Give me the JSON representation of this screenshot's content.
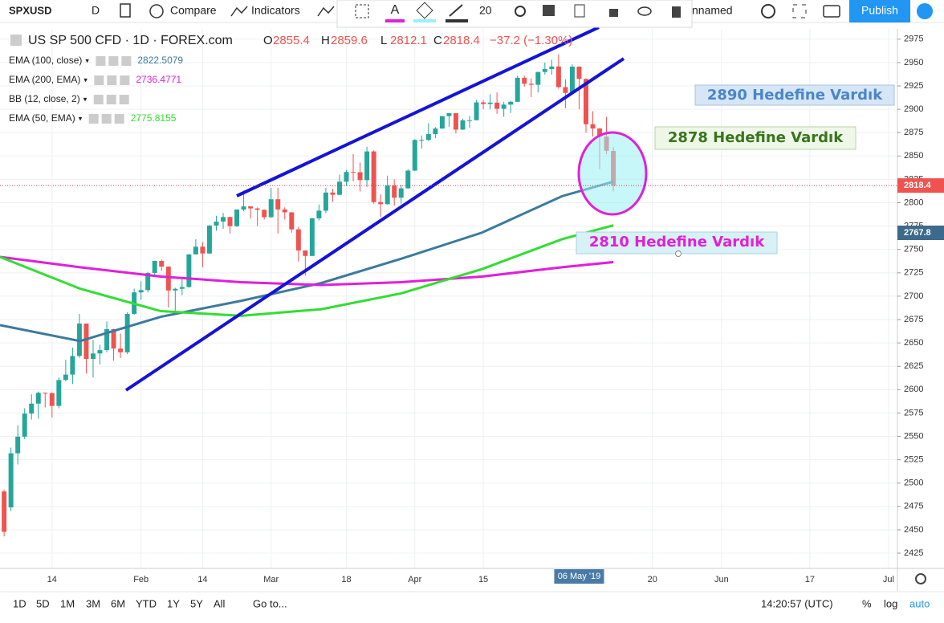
{
  "toolbar": {
    "symbol": "SPXUSD",
    "interval": "D",
    "compare": "Compare",
    "indicators": "Indicators",
    "font_size": 20,
    "layout_name": "nnamed",
    "publish": "Publish"
  },
  "bottom_bar": {
    "ranges": [
      "1D",
      "5D",
      "1M",
      "3M",
      "6M",
      "YTD",
      "1Y",
      "5Y",
      "All"
    ],
    "goto": "Go to...",
    "time": "14:20:57 (UTC)",
    "percent": "%",
    "log": "log",
    "auto": "auto"
  },
  "annotations": [
    {
      "text": "2890 Hedefine Vardık"
    },
    {
      "text": "2878 Hedefine Vardık"
    },
    {
      "text": "2810 Hedefine Vardık"
    }
  ],
  "chart_data": {
    "type": "candlestick",
    "title": "US SP 500 CFD · 1D · FOREX.com",
    "ohlc_labels": [
      "O",
      "H",
      "L",
      "C"
    ],
    "change_label": "−37.2 (−1.30%)",
    "extra_legend": [
      "BB (12, close, 2)"
    ],
    "up_color": "#26a69a",
    "down_color": "#ef5350",
    "categories": [
      null,
      null,
      null,
      null,
      null,
      null,
      null,
      null,
      null,
      null,
      null,
      null,
      null,
      null,
      null,
      null,
      null,
      null,
      null,
      null,
      null,
      null,
      null,
      null,
      null,
      null,
      null,
      null,
      null,
      null,
      null,
      null,
      null,
      null,
      null,
      null,
      null,
      null,
      null,
      null,
      null,
      null,
      null,
      null,
      null,
      null,
      null,
      null,
      null,
      null,
      null,
      null,
      null,
      null,
      null,
      null,
      null,
      null,
      null,
      null,
      null,
      null,
      null,
      null,
      null,
      null,
      null,
      null,
      null,
      null,
      null,
      null,
      null,
      null,
      null,
      null,
      null,
      null,
      null,
      null,
      null,
      null,
      null,
      null,
      null,
      null,
      null,
      null,
      null,
      null
    ],
    "open": [
      2491,
      2474,
      2531.9,
      2549.7,
      2574.4,
      2585,
      2596.6,
      2596.3,
      2582.6,
      2610.3,
      2616.1,
      2636,
      2670.7,
      2632.9,
      2638.7,
      2642.3,
      2664.8,
      2643.9,
      2640,
      2681,
      2704.1,
      2706.5,
      2724.9,
      2737.7,
      2731.6,
      2706.1,
      2707.9,
      2709.8,
      2744.7,
      2753,
      2745.7,
      2775.6,
      2779.8,
      2784.7,
      2774.9,
      2792.7,
      2796.1,
      2793.9,
      2792.4,
      2784.5,
      2803.7,
      2792.8,
      2789.7,
      2771.5,
      2748.9,
      2743.1,
      2783.3,
      2791.5,
      2810.9,
      2808.5,
      2822.5,
      2832.9,
      2832.6,
      2824.2,
      2854.9,
      2800.7,
      2798.4,
      2818.5,
      2805.4,
      2815.4,
      2834.4,
      2867.2,
      2867.2,
      2873.4,
      2879.4,
      2892.7,
      2895.8,
      2878.2,
      2888.2,
      2888.3,
      2907.4,
      2905.6,
      2907.1,
      2900.5,
      2905,
      2908,
      2933.7,
      2927.3,
      2926.2,
      2939.9,
      2943,
      2945.8,
      2923.7,
      2917.5,
      2945.6,
      2932.5,
      2884,
      2879.4,
      2870.7,
      2855.4
    ],
    "high": [
      2493,
      2538,
      2562,
      2580,
      2595,
      2598,
      2597,
      2597,
      2613,
      2632,
      2645,
      2681,
      2670,
      2653,
      2648,
      2673,
      2665,
      2660,
      2683,
      2708,
      2716,
      2726,
      2738,
      2739,
      2732,
      2709,
      2718,
      2745,
      2761,
      2758,
      2776,
      2786,
      2789,
      2785,
      2793,
      2813,
      2796,
      2795,
      2793,
      2816,
      2816,
      2795,
      2790,
      2774,
      2749,
      2784,
      2798,
      2816,
      2815,
      2830,
      2835,
      2852,
      2843,
      2860,
      2856,
      2809,
      2829,
      2825,
      2819,
      2836,
      2868,
      2872,
      2885,
      2881,
      2893,
      2896,
      2896,
      2890,
      2893,
      2910,
      2910,
      2916,
      2918,
      2908,
      2909,
      2936,
      2936,
      2933,
      2940,
      2950,
      2953,
      2959,
      2932,
      2948,
      2946,
      2933,
      2898,
      2880,
      2892,
      2859.6
    ],
    "low": [
      2443,
      2470,
      2520,
      2547,
      2568,
      2569,
      2581,
      2570,
      2580,
      2609,
      2606,
      2634,
      2617,
      2613,
      2627,
      2640,
      2631,
      2634,
      2638,
      2680,
      2696,
      2704,
      2722,
      2727,
      2688,
      2681,
      2701,
      2709,
      2745,
      2731,
      2745,
      2770,
      2772,
      2767,
      2774,
      2791,
      2783,
      2775,
      2782,
      2784,
      2767,
      2782,
      2768,
      2737,
      2722,
      2743,
      2781,
      2789,
      2801,
      2808,
      2818,
      2823,
      2812,
      2817,
      2799,
      2785,
      2798,
      2797,
      2799,
      2815,
      2834,
      2858,
      2866,
      2869,
      2879,
      2881,
      2874,
      2878,
      2880,
      2888,
      2900,
      2900,
      2895,
      2892,
      2896,
      2908,
      2924,
      2913,
      2918,
      2937,
      2937,
      2922,
      2901,
      2917,
      2900,
      2875,
      2871,
      2836,
      2852,
      2812.1
    ],
    "close": [
      2447.9,
      2531.9,
      2549.7,
      2574.4,
      2585,
      2596.6,
      2596.3,
      2582.6,
      2610.3,
      2616.1,
      2636,
      2670.7,
      2632.9,
      2638.7,
      2642.3,
      2664.8,
      2643.9,
      2640,
      2681,
      2704.1,
      2706.5,
      2724.9,
      2737.7,
      2731.6,
      2706.1,
      2707.9,
      2709.8,
      2744.7,
      2753,
      2745.7,
      2775.6,
      2779.8,
      2784.7,
      2774.9,
      2792.7,
      2796.1,
      2793.9,
      2792.4,
      2784.5,
      2803.7,
      2792.8,
      2789.7,
      2771.5,
      2748.9,
      2743.1,
      2783.3,
      2791.5,
      2810.9,
      2808.5,
      2822.5,
      2832.9,
      2832.6,
      2824.2,
      2854.9,
      2800.7,
      2798.4,
      2818.5,
      2805.4,
      2815.4,
      2834.4,
      2867.2,
      2867.2,
      2873.4,
      2879.4,
      2892.7,
      2895.8,
      2878.2,
      2888.2,
      2888.3,
      2907.4,
      2905.6,
      2907.1,
      2900.5,
      2905,
      2908,
      2933.7,
      2927.3,
      2926.2,
      2939.9,
      2943,
      2945.8,
      2923.7,
      2917.5,
      2945.6,
      2932.5,
      2884,
      2879.4,
      2870.7,
      2855.6,
      2818.4
    ],
    "series": [
      {
        "name": "EMA (100, close)",
        "color": "#3d7a9e",
        "x": [
          -0.6,
          11.1,
          22.9,
          34.6,
          46.3,
          58,
          69.8,
          81.5,
          89
        ],
        "values": [
          2669,
          2652,
          2678,
          2695,
          2714,
          2740,
          2768,
          2807,
          2822.5079
        ]
      },
      {
        "name": "EMA (200, EMA)",
        "color": "#e020d8",
        "x": [
          -0.6,
          11.1,
          22.9,
          34.6,
          46.3,
          58,
          69.8,
          81.5,
          89
        ],
        "values": [
          2742,
          2731,
          2721,
          2715,
          2712,
          2715,
          2721,
          2731,
          2736.4771
        ]
      },
      {
        "name": "EMA (50, EMA)",
        "color": "#33dd33",
        "x": [
          -0.6,
          11.1,
          22.9,
          34.6,
          46.3,
          58,
          69.8,
          81.5,
          89
        ],
        "values": [
          2742,
          2708,
          2684,
          2679,
          2686,
          2703,
          2729,
          2761,
          2775.8155
        ]
      }
    ],
    "alert_price": 2767.8,
    "crosshair": {
      "x": 84,
      "label": "06 May '19"
    },
    "xlim": [
      -0.6,
      130.5
    ],
    "xticks": [
      {
        "value": 7,
        "label": "14"
      },
      {
        "value": 20,
        "label": "Feb"
      },
      {
        "value": 29,
        "label": "14"
      },
      {
        "value": 39,
        "label": "Mar"
      },
      {
        "value": 50,
        "label": "18"
      },
      {
        "value": 60,
        "label": "Apr"
      },
      {
        "value": 70,
        "label": "15"
      },
      {
        "value": 94.7,
        "label": "20"
      },
      {
        "value": 104.8,
        "label": "Jun"
      },
      {
        "value": 117.7,
        "label": "17"
      },
      {
        "value": 129.2,
        "label": "Jul"
      }
    ],
    "ylim": [
      2408.7,
      2986
    ],
    "yticks": [
      2425,
      2450,
      2475,
      2500,
      2525,
      2550,
      2575,
      2600,
      2625,
      2650,
      2675,
      2700,
      2725,
      2750,
      2775,
      2800,
      2825,
      2850,
      2875,
      2900,
      2925,
      2950,
      2975
    ],
    "grid": true
  }
}
